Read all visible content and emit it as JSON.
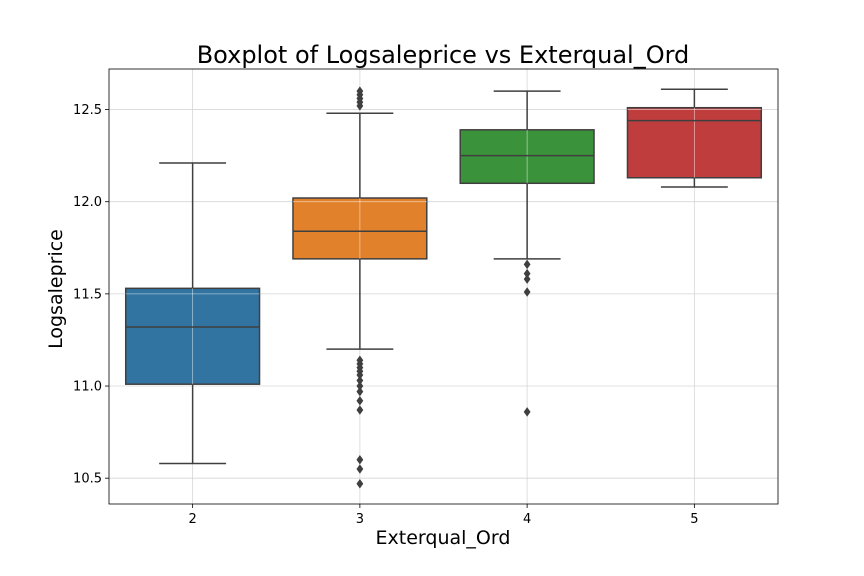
{
  "chart_data": {
    "type": "boxplot",
    "title": "Boxplot of Logsaleprice vs Exterqual_Ord",
    "xlabel": "Exterqual_Ord",
    "ylabel": "Logsaleprice",
    "ylim": [
      10.36,
      12.72
    ],
    "yticks": [
      10.5,
      11.0,
      11.5,
      12.0,
      12.5
    ],
    "ytick_labels": [
      "10.5",
      "11.0",
      "11.5",
      "12.0",
      "12.5"
    ],
    "grid": true,
    "categories": [
      "2",
      "3",
      "4",
      "5"
    ],
    "boxes": [
      {
        "category": "2",
        "color": "#3274a1",
        "whisker_low": 10.58,
        "q1": 11.01,
        "median": 11.32,
        "q3": 11.53,
        "whisker_high": 12.21,
        "outliers": []
      },
      {
        "category": "3",
        "color": "#e1812c",
        "whisker_low": 11.2,
        "q1": 11.69,
        "median": 11.84,
        "q3": 12.02,
        "whisker_high": 12.48,
        "outliers": [
          10.47,
          10.55,
          10.6,
          10.87,
          10.92,
          10.97,
          11.0,
          11.03,
          11.06,
          11.08,
          11.1,
          11.12,
          11.14,
          12.52,
          12.54,
          12.56,
          12.58,
          12.6
        ]
      },
      {
        "category": "4",
        "color": "#3a923a",
        "whisker_low": 11.69,
        "q1": 12.1,
        "median": 12.25,
        "q3": 12.39,
        "whisker_high": 12.6,
        "outliers": [
          10.86,
          11.51,
          11.58,
          11.61,
          11.66
        ]
      },
      {
        "category": "5",
        "color": "#c03d3e",
        "whisker_low": 12.08,
        "q1": 12.13,
        "median": 12.44,
        "q3": 12.51,
        "whisker_high": 12.61,
        "outliers": []
      }
    ]
  }
}
